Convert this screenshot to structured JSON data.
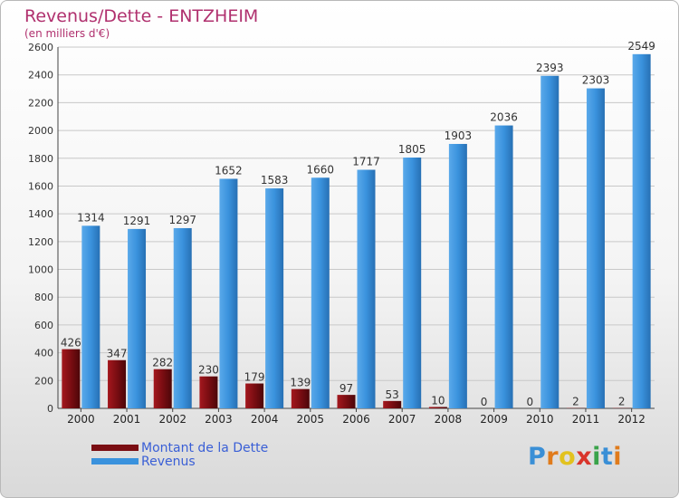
{
  "header": {
    "title": "Revenus/Dette - ENTZHEIM",
    "subtitle": "(en milliers d'€)"
  },
  "colors": {
    "debt": "#7a0d12",
    "revenue": "#3a92dd",
    "title": "#b0306e",
    "legend_text": "#3a5fd6",
    "grid": "#c8c8c8"
  },
  "chart_data": {
    "type": "bar",
    "categories": [
      "2000",
      "2001",
      "2002",
      "2003",
      "2004",
      "2005",
      "2006",
      "2007",
      "2008",
      "2009",
      "2010",
      "2011",
      "2012"
    ],
    "series": [
      {
        "name": "Montant de la Dette",
        "values": [
          426,
          347,
          282,
          230,
          179,
          139,
          97,
          53,
          10,
          0,
          0,
          2,
          2
        ]
      },
      {
        "name": "Revenus",
        "values": [
          1314,
          1291,
          1297,
          1652,
          1583,
          1660,
          1717,
          1805,
          1903,
          2036,
          2393,
          2303,
          2549
        ]
      }
    ],
    "ylim": [
      0,
      2600
    ],
    "yticks": [
      0,
      200,
      400,
      600,
      800,
      1000,
      1200,
      1400,
      1600,
      1800,
      2000,
      2200,
      2400,
      2600
    ],
    "grid": true,
    "legend_position": "bottom-left"
  },
  "legend": {
    "items": [
      {
        "label": "Montant de la Dette"
      },
      {
        "label": "Revenus"
      }
    ]
  },
  "logo": {
    "letters": [
      "P",
      "r",
      "o",
      "x",
      "i",
      "t",
      "i"
    ],
    "colors": [
      "#3a8fd6",
      "#e07b1c",
      "#e2c21f",
      "#d9342b",
      "#3aa34a",
      "#3a8fd6",
      "#e07b1c"
    ]
  }
}
